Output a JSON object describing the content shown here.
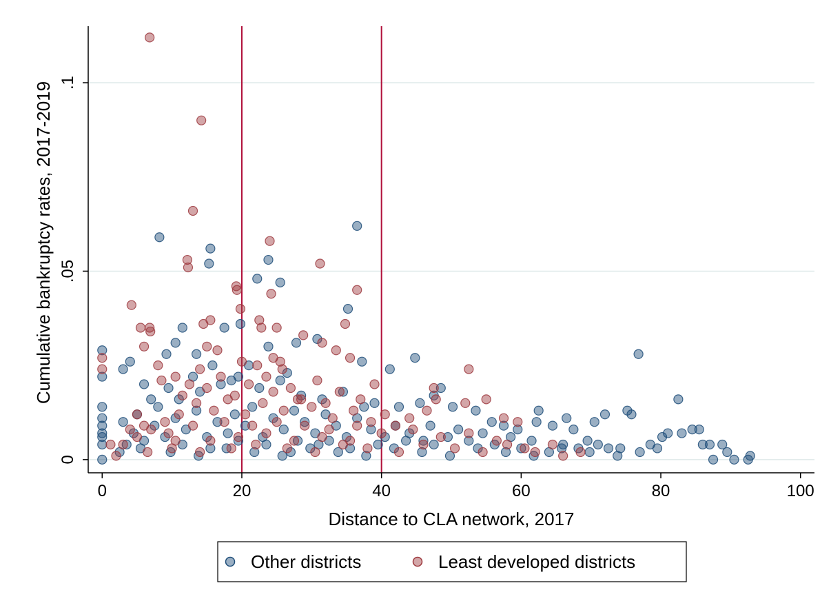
{
  "chart_data": {
    "type": "scatter",
    "title": "",
    "xlabel": "Distance to CLA network, 2017",
    "ylabel": "Cumulative bankruptcy rates, 2017-2019",
    "xlim": [
      -2,
      102
    ],
    "ylim": [
      -0.0035,
      0.115
    ],
    "x_ticks": [
      0,
      20,
      40,
      60,
      80,
      100
    ],
    "x_tick_labels": [
      "0",
      "20",
      "40",
      "60",
      "80",
      "100"
    ],
    "y_ticks": [
      0,
      0.05,
      0.1
    ],
    "y_tick_labels": [
      "0",
      ".05",
      ".1"
    ],
    "grid": true,
    "legend_position": "bottom",
    "reference_lines_x": [
      20,
      40
    ],
    "colors": {
      "other": "#1f4e79",
      "least": "#9e3a3f",
      "reference": "#b0103a",
      "grid": "#dfeaea"
    },
    "series": [
      {
        "name": "Other districts",
        "color": "#1f4e79",
        "points": [
          [
            0,
            0.029
          ],
          [
            0,
            0.022
          ],
          [
            0,
            0.014
          ],
          [
            0,
            0.011
          ],
          [
            0,
            0.009
          ],
          [
            0,
            0.007
          ],
          [
            0,
            0.006
          ],
          [
            0,
            0.004
          ],
          [
            0,
            0.0
          ],
          [
            8.2,
            0.059
          ],
          [
            15.5,
            0.056
          ],
          [
            15.3,
            0.052
          ],
          [
            22.2,
            0.048
          ],
          [
            23.8,
            0.053
          ],
          [
            25.5,
            0.047
          ],
          [
            36.5,
            0.062
          ],
          [
            35.2,
            0.04
          ],
          [
            19.8,
            0.036
          ],
          [
            17.5,
            0.035
          ],
          [
            11.5,
            0.035
          ],
          [
            10.5,
            0.031
          ],
          [
            27.8,
            0.031
          ],
          [
            30.8,
            0.032
          ],
          [
            44.8,
            0.027
          ],
          [
            41.2,
            0.024
          ],
          [
            37.2,
            0.026
          ],
          [
            23.8,
            0.03
          ],
          [
            13.5,
            0.028
          ],
          [
            15.8,
            0.025
          ],
          [
            9.2,
            0.028
          ],
          [
            6.0,
            0.02
          ],
          [
            4.0,
            0.026
          ],
          [
            3.0,
            0.024
          ],
          [
            48.5,
            0.019
          ],
          [
            47.5,
            0.017
          ],
          [
            45.5,
            0.015
          ],
          [
            42.5,
            0.014
          ],
          [
            39.0,
            0.015
          ],
          [
            50.2,
            0.014
          ],
          [
            53.5,
            0.013
          ],
          [
            55.8,
            0.01
          ],
          [
            57.5,
            0.009
          ],
          [
            59.5,
            0.008
          ],
          [
            62.5,
            0.013
          ],
          [
            62.2,
            0.01
          ],
          [
            64.5,
            0.009
          ],
          [
            66.5,
            0.011
          ],
          [
            67.5,
            0.008
          ],
          [
            70.5,
            0.01
          ],
          [
            72.0,
            0.012
          ],
          [
            75.2,
            0.013
          ],
          [
            75.8,
            0.012
          ],
          [
            76.8,
            0.028
          ],
          [
            82.5,
            0.016
          ],
          [
            80.2,
            0.006
          ],
          [
            81.0,
            0.007
          ],
          [
            84.5,
            0.008
          ],
          [
            85.5,
            0.008
          ],
          [
            86.0,
            0.004
          ],
          [
            83.0,
            0.007
          ],
          [
            88.8,
            0.004
          ],
          [
            89.5,
            0.002
          ],
          [
            90.5,
            0.0
          ],
          [
            92.8,
            0.001
          ],
          [
            92.5,
            0.0
          ],
          [
            87.5,
            0.0
          ],
          [
            87.0,
            0.004
          ],
          [
            79.5,
            0.003
          ],
          [
            78.5,
            0.004
          ],
          [
            77.0,
            0.002
          ],
          [
            74.2,
            0.003
          ],
          [
            72.5,
            0.003
          ],
          [
            71.0,
            0.004
          ],
          [
            69.5,
            0.005
          ],
          [
            68.2,
            0.003
          ],
          [
            66.0,
            0.004
          ],
          [
            64.0,
            0.002
          ],
          [
            61.5,
            0.005
          ],
          [
            60.0,
            0.003
          ],
          [
            58.5,
            0.006
          ],
          [
            56.2,
            0.004
          ],
          [
            54.5,
            0.007
          ],
          [
            52.5,
            0.005
          ],
          [
            51.0,
            0.008
          ],
          [
            49.5,
            0.006
          ],
          [
            47.0,
            0.009
          ],
          [
            46.0,
            0.005
          ],
          [
            44.0,
            0.007
          ],
          [
            42.0,
            0.009
          ],
          [
            40.5,
            0.006
          ],
          [
            38.5,
            0.008
          ],
          [
            36.5,
            0.011
          ],
          [
            35.0,
            0.006
          ],
          [
            33.5,
            0.009
          ],
          [
            32.0,
            0.012
          ],
          [
            30.5,
            0.007
          ],
          [
            29.0,
            0.01
          ],
          [
            27.5,
            0.013
          ],
          [
            26.0,
            0.008
          ],
          [
            24.5,
            0.011
          ],
          [
            23.0,
            0.006
          ],
          [
            21.5,
            0.014
          ],
          [
            20.5,
            0.009
          ],
          [
            19.0,
            0.012
          ],
          [
            18.0,
            0.007
          ],
          [
            16.5,
            0.01
          ],
          [
            15.0,
            0.006
          ],
          [
            13.5,
            0.013
          ],
          [
            12.0,
            0.008
          ],
          [
            10.5,
            0.011
          ],
          [
            9.0,
            0.006
          ],
          [
            7.5,
            0.009
          ],
          [
            6.0,
            0.005
          ],
          [
            4.5,
            0.007
          ],
          [
            3.5,
            0.004
          ],
          [
            2.5,
            0.002
          ],
          [
            5.0,
            0.012
          ],
          [
            8.0,
            0.014
          ],
          [
            11.0,
            0.016
          ],
          [
            14.0,
            0.018
          ],
          [
            17.0,
            0.02
          ],
          [
            19.5,
            0.022
          ],
          [
            22.5,
            0.019
          ],
          [
            25.5,
            0.021
          ],
          [
            28.5,
            0.017
          ],
          [
            31.5,
            0.016
          ],
          [
            34.5,
            0.018
          ],
          [
            37.5,
            0.014
          ],
          [
            26.5,
            0.023
          ],
          [
            21.0,
            0.025
          ],
          [
            18.5,
            0.021
          ],
          [
            13.0,
            0.022
          ],
          [
            9.5,
            0.019
          ],
          [
            7.0,
            0.016
          ],
          [
            3.0,
            0.01
          ],
          [
            5.5,
            0.003
          ],
          [
            9.8,
            0.002
          ],
          [
            13.8,
            0.001
          ],
          [
            17.8,
            0.003
          ],
          [
            21.8,
            0.002
          ],
          [
            25.8,
            0.001
          ],
          [
            29.8,
            0.003
          ],
          [
            33.8,
            0.002
          ],
          [
            37.8,
            0.001
          ],
          [
            41.8,
            0.003
          ],
          [
            45.8,
            0.002
          ],
          [
            49.8,
            0.001
          ],
          [
            53.8,
            0.003
          ],
          [
            57.8,
            0.002
          ],
          [
            61.8,
            0.001
          ],
          [
            65.8,
            0.003
          ],
          [
            69.8,
            0.002
          ],
          [
            73.8,
            0.001
          ],
          [
            28.0,
            0.005
          ],
          [
            31.0,
            0.004
          ],
          [
            35.5,
            0.003
          ],
          [
            39.5,
            0.004
          ],
          [
            43.5,
            0.005
          ],
          [
            47.5,
            0.004
          ],
          [
            11.5,
            0.004
          ],
          [
            15.5,
            0.003
          ],
          [
            19.5,
            0.005
          ],
          [
            23.5,
            0.004
          ],
          [
            27.0,
            0.002
          ],
          [
            32.5,
            0.005
          ]
        ]
      },
      {
        "name": "Least developed districts",
        "color": "#9e3a3f",
        "points": [
          [
            6.8,
            0.112
          ],
          [
            14.2,
            0.09
          ],
          [
            13.0,
            0.066
          ],
          [
            12.2,
            0.053
          ],
          [
            12.3,
            0.051
          ],
          [
            24.0,
            0.058
          ],
          [
            31.2,
            0.052
          ],
          [
            19.2,
            0.046
          ],
          [
            19.3,
            0.045
          ],
          [
            24.2,
            0.044
          ],
          [
            36.5,
            0.045
          ],
          [
            4.2,
            0.041
          ],
          [
            19.8,
            0.04
          ],
          [
            22.5,
            0.037
          ],
          [
            22.8,
            0.035
          ],
          [
            25.0,
            0.035
          ],
          [
            34.8,
            0.036
          ],
          [
            6.8,
            0.035
          ],
          [
            6.9,
            0.034
          ],
          [
            5.5,
            0.035
          ],
          [
            14.5,
            0.036
          ],
          [
            15.5,
            0.037
          ],
          [
            28.8,
            0.033
          ],
          [
            31.5,
            0.031
          ],
          [
            15.0,
            0.03
          ],
          [
            16.5,
            0.029
          ],
          [
            0,
            0.027
          ],
          [
            0,
            0.024
          ],
          [
            6.0,
            0.03
          ],
          [
            8.0,
            0.025
          ],
          [
            35.5,
            0.027
          ],
          [
            33.5,
            0.029
          ],
          [
            24.5,
            0.027
          ],
          [
            25.5,
            0.026
          ],
          [
            52.5,
            0.024
          ],
          [
            39.0,
            0.02
          ],
          [
            47.5,
            0.019
          ],
          [
            47.8,
            0.016
          ],
          [
            55.0,
            0.016
          ],
          [
            59.5,
            0.01
          ],
          [
            57.5,
            0.011
          ],
          [
            52.0,
            0.015
          ],
          [
            46.5,
            0.013
          ],
          [
            44.0,
            0.011
          ],
          [
            42.0,
            0.009
          ],
          [
            40.5,
            0.012
          ],
          [
            38.5,
            0.01
          ],
          [
            36.0,
            0.013
          ],
          [
            33.0,
            0.011
          ],
          [
            30.0,
            0.014
          ],
          [
            28.0,
            0.016
          ],
          [
            26.0,
            0.013
          ],
          [
            23.0,
            0.015
          ],
          [
            20.5,
            0.012
          ],
          [
            18.0,
            0.016
          ],
          [
            16.0,
            0.013
          ],
          [
            13.5,
            0.015
          ],
          [
            11.0,
            0.012
          ],
          [
            9.0,
            0.01
          ],
          [
            7.0,
            0.008
          ],
          [
            5.0,
            0.006
          ],
          [
            4.0,
            0.008
          ],
          [
            3.0,
            0.004
          ],
          [
            1.2,
            0.004
          ],
          [
            2.0,
            0.001
          ],
          [
            6.5,
            0.002
          ],
          [
            10.0,
            0.003
          ],
          [
            14.0,
            0.002
          ],
          [
            18.5,
            0.003
          ],
          [
            22.0,
            0.004
          ],
          [
            26.5,
            0.003
          ],
          [
            30.5,
            0.002
          ],
          [
            34.5,
            0.004
          ],
          [
            38.0,
            0.003
          ],
          [
            42.5,
            0.002
          ],
          [
            46.0,
            0.004
          ],
          [
            50.5,
            0.003
          ],
          [
            54.5,
            0.002
          ],
          [
            58.0,
            0.004
          ],
          [
            62.0,
            0.002
          ],
          [
            66.0,
            0.001
          ],
          [
            68.5,
            0.002
          ],
          [
            64.5,
            0.004
          ],
          [
            60.5,
            0.003
          ],
          [
            56.5,
            0.005
          ],
          [
            52.5,
            0.007
          ],
          [
            48.5,
            0.006
          ],
          [
            44.5,
            0.008
          ],
          [
            40.0,
            0.007
          ],
          [
            36.5,
            0.009
          ],
          [
            32.5,
            0.008
          ],
          [
            29.0,
            0.009
          ],
          [
            25.0,
            0.01
          ],
          [
            21.5,
            0.009
          ],
          [
            17.5,
            0.01
          ],
          [
            13.0,
            0.009
          ],
          [
            9.5,
            0.007
          ],
          [
            6.0,
            0.009
          ],
          [
            12.5,
            0.02
          ],
          [
            17.0,
            0.022
          ],
          [
            21.0,
            0.02
          ],
          [
            23.5,
            0.022
          ],
          [
            27.0,
            0.019
          ],
          [
            30.8,
            0.021
          ],
          [
            34.0,
            0.018
          ],
          [
            10.5,
            0.022
          ],
          [
            8.5,
            0.021
          ],
          [
            5.0,
            0.012
          ],
          [
            11.5,
            0.017
          ],
          [
            15.0,
            0.019
          ],
          [
            19.0,
            0.017
          ],
          [
            24.5,
            0.018
          ],
          [
            28.5,
            0.016
          ],
          [
            32.0,
            0.015
          ],
          [
            37.0,
            0.016
          ],
          [
            20.0,
            0.026
          ],
          [
            22.2,
            0.025
          ],
          [
            25.8,
            0.024
          ],
          [
            14.0,
            0.024
          ],
          [
            27.5,
            0.005
          ],
          [
            31.5,
            0.006
          ],
          [
            35.5,
            0.005
          ],
          [
            19.5,
            0.006
          ],
          [
            15.5,
            0.005
          ],
          [
            23.5,
            0.007
          ],
          [
            10.5,
            0.005
          ]
        ]
      }
    ]
  }
}
